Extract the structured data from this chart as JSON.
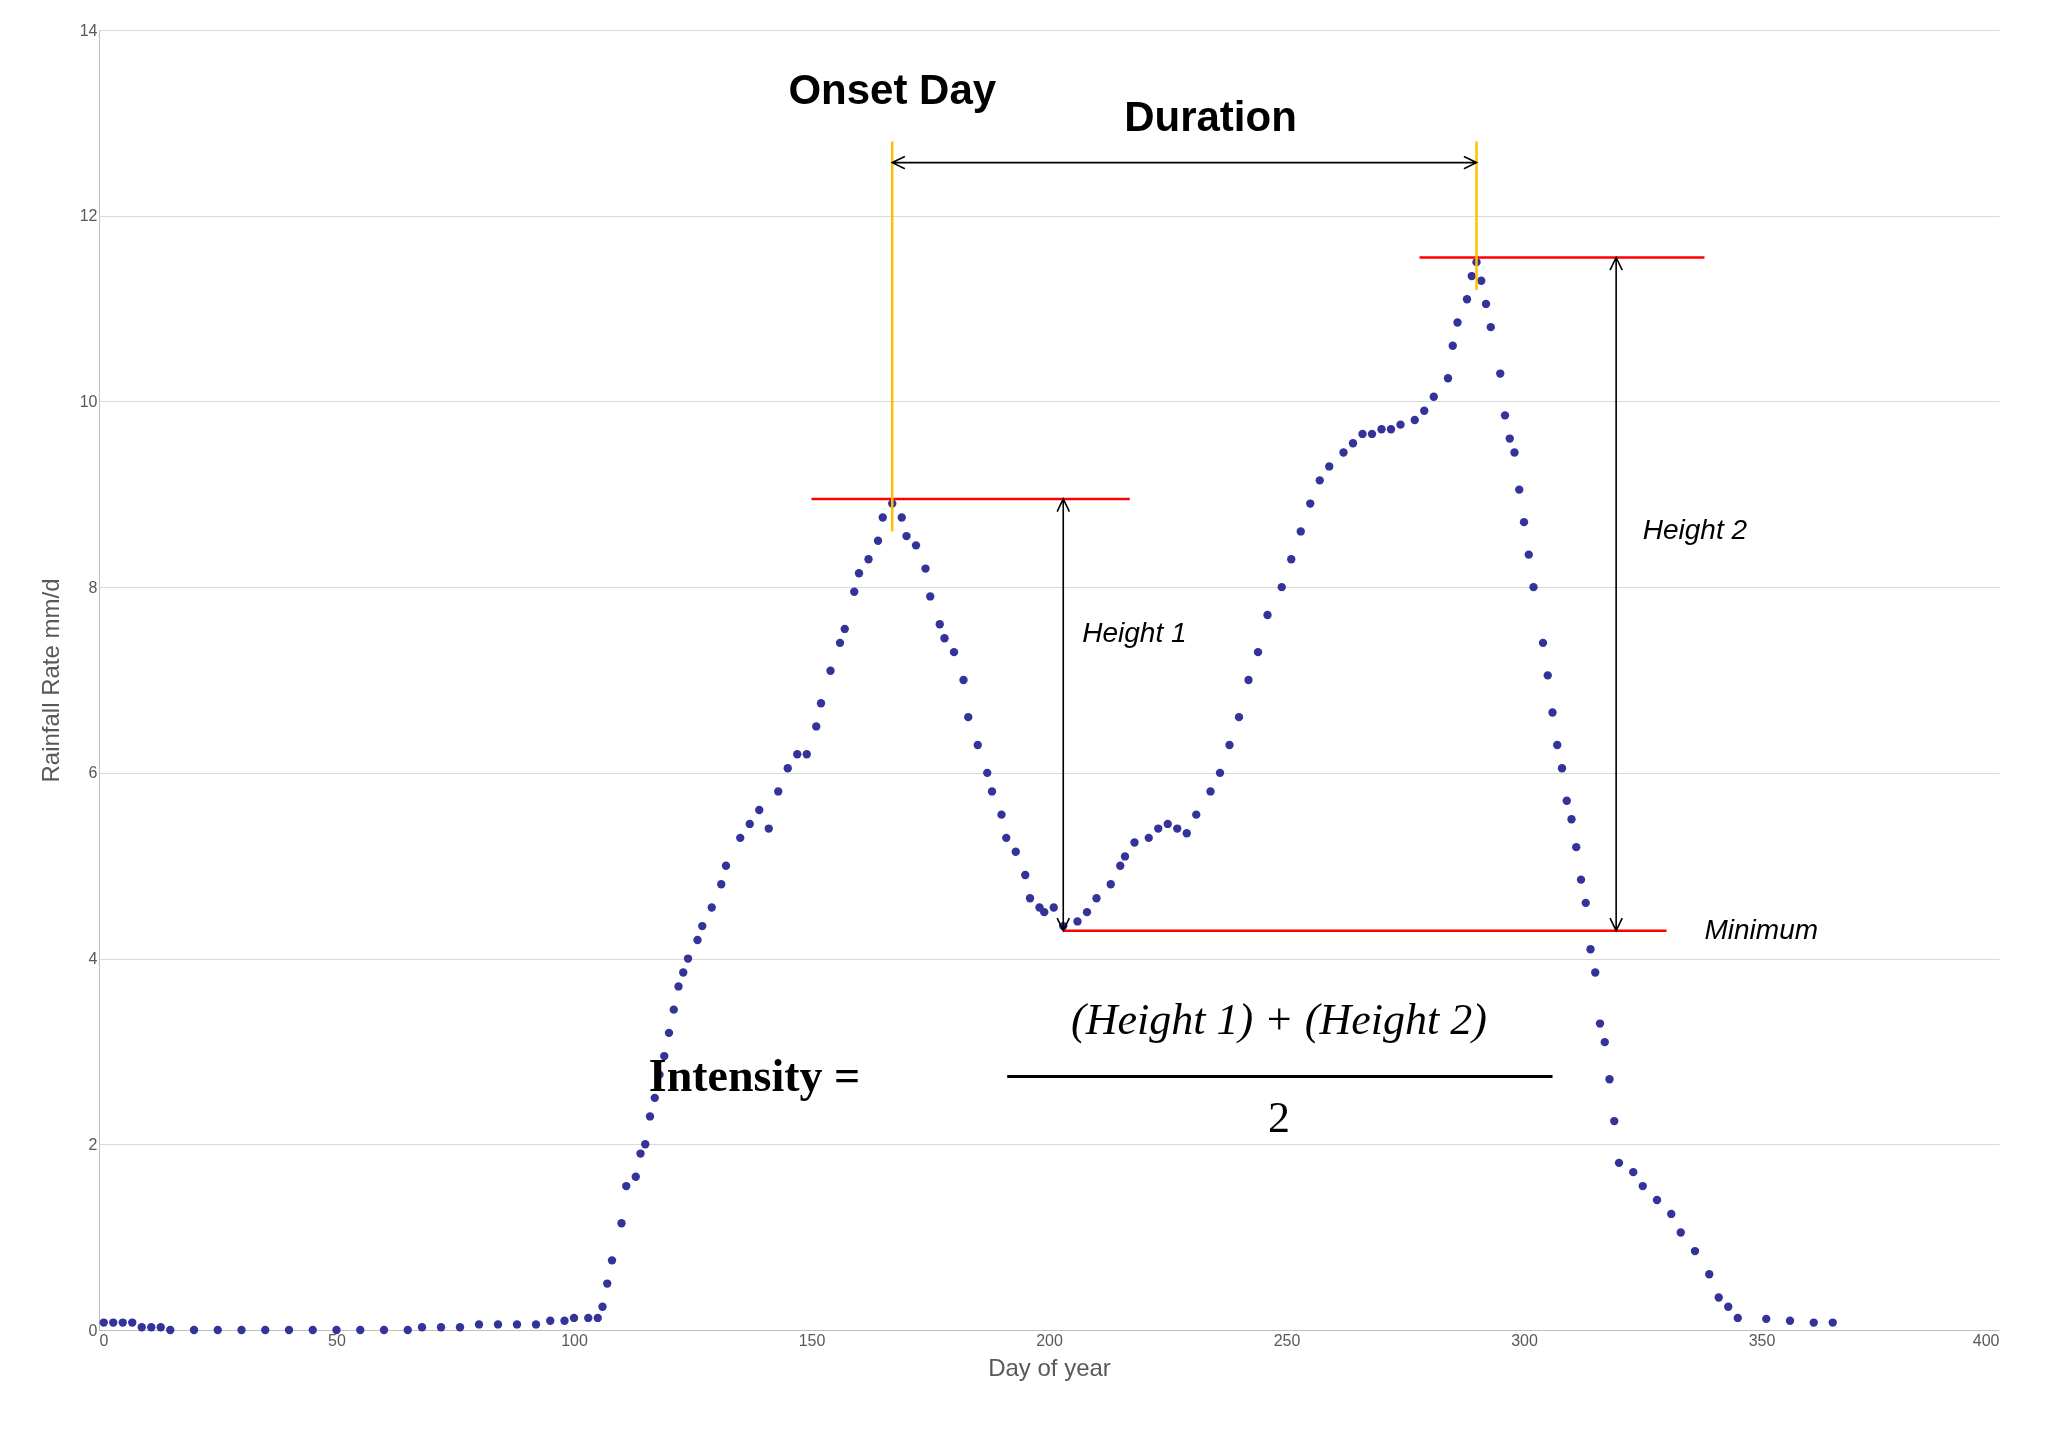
{
  "chart_data": {
    "type": "scatter",
    "xlabel": "Day of year",
    "ylabel": "Rainfall Rate mm/d",
    "xlim": [
      0,
      400
    ],
    "xticks": [
      0,
      50,
      100,
      150,
      200,
      250,
      300,
      350,
      400
    ],
    "ylim": [
      0,
      14
    ],
    "yticks": [
      0,
      2,
      4,
      6,
      8,
      10,
      12,
      14
    ],
    "grid": "y",
    "marker": "circle",
    "series": [
      {
        "color": "#333399",
        "x": [
          1,
          3,
          5,
          7,
          9,
          11,
          13,
          15,
          20,
          25,
          30,
          35,
          40,
          45,
          50,
          55,
          60,
          65,
          68,
          72,
          76,
          80,
          84,
          88,
          92,
          95,
          98,
          100,
          103,
          105,
          106,
          107,
          108,
          110,
          111,
          113,
          114,
          115,
          116,
          117,
          118,
          119,
          120,
          121,
          122,
          123,
          124,
          126,
          127,
          129,
          131,
          132,
          135,
          137,
          139,
          141,
          143,
          145,
          147,
          149,
          151,
          152,
          154,
          156,
          157,
          159,
          160,
          162,
          164,
          165,
          167,
          169,
          170,
          172,
          174,
          175,
          177,
          178,
          180,
          182,
          183,
          185,
          187,
          188,
          190,
          191,
          193,
          195,
          196,
          198,
          199,
          201,
          203,
          206,
          208,
          210,
          213,
          215,
          216,
          218,
          221,
          223,
          225,
          227,
          229,
          231,
          234,
          236,
          238,
          240,
          242,
          244,
          246,
          249,
          251,
          253,
          255,
          257,
          259,
          262,
          264,
          266,
          268,
          270,
          272,
          274,
          277,
          279,
          281,
          284,
          285,
          286,
          288,
          289,
          290,
          291,
          292,
          293,
          295,
          296,
          297,
          298,
          299,
          300,
          301,
          302,
          304,
          305,
          306,
          307,
          308,
          309,
          310,
          311,
          312,
          313,
          314,
          315,
          316,
          317,
          318,
          319,
          320,
          323,
          325,
          328,
          331,
          333,
          336,
          339,
          341,
          343,
          345,
          351,
          356,
          361,
          365
        ],
        "values": [
          0.08,
          0.08,
          0.08,
          0.08,
          0.03,
          0.03,
          0.03,
          0,
          0,
          0,
          0,
          0,
          0,
          0,
          0,
          0,
          0,
          0,
          0.03,
          0.03,
          0.03,
          0.06,
          0.06,
          0.06,
          0.06,
          0.1,
          0.1,
          0.13,
          0.13,
          0.13,
          0.25,
          0.5,
          0.75,
          1.15,
          1.55,
          1.65,
          1.9,
          2.0,
          2.3,
          2.5,
          2.75,
          2.95,
          3.2,
          3.45,
          3.7,
          3.85,
          4.0,
          4.2,
          4.35,
          4.55,
          4.8,
          5.0,
          5.3,
          5.45,
          5.6,
          5.4,
          5.8,
          6.05,
          6.2,
          6.2,
          6.5,
          6.75,
          7.1,
          7.4,
          7.55,
          7.95,
          8.15,
          8.3,
          8.5,
          8.75,
          8.9,
          8.75,
          8.55,
          8.45,
          8.2,
          7.9,
          7.6,
          7.45,
          7.3,
          7.0,
          6.6,
          6.3,
          6.0,
          5.8,
          5.55,
          5.3,
          5.15,
          4.9,
          4.65,
          4.55,
          4.5,
          4.55,
          4.35,
          4.4,
          4.5,
          4.65,
          4.8,
          5.0,
          5.1,
          5.25,
          5.3,
          5.4,
          5.45,
          5.4,
          5.35,
          5.55,
          5.8,
          6.0,
          6.3,
          6.6,
          7.0,
          7.3,
          7.7,
          8.0,
          8.3,
          8.6,
          8.9,
          9.15,
          9.3,
          9.45,
          9.55,
          9.65,
          9.65,
          9.7,
          9.7,
          9.75,
          9.8,
          9.9,
          10.05,
          10.25,
          10.6,
          10.85,
          11.1,
          11.35,
          11.5,
          11.3,
          11.05,
          10.8,
          10.3,
          9.85,
          9.6,
          9.45,
          9.05,
          8.7,
          8.35,
          8.0,
          7.4,
          7.05,
          6.65,
          6.3,
          6.05,
          5.7,
          5.5,
          5.2,
          4.85,
          4.6,
          4.1,
          3.85,
          3.3,
          3.1,
          2.7,
          2.25,
          1.8,
          1.7,
          1.55,
          1.4,
          1.25,
          1.05,
          0.85,
          0.6,
          0.35,
          0.25,
          0.13,
          0.12,
          0.1,
          0.08,
          0.08
        ]
      },
      {
        "type": "line",
        "marker": "none",
        "color": "#ff0000",
        "x": [
          150,
          217
        ],
        "values": [
          8.95,
          8.95
        ]
      },
      {
        "type": "line",
        "marker": "none",
        "color": "#ff0000",
        "x": [
          278,
          338
        ],
        "values": [
          11.55,
          11.55
        ]
      },
      {
        "type": "line",
        "marker": "none",
        "color": "#ff0000",
        "x": [
          203,
          330
        ],
        "values": [
          4.3,
          4.3
        ]
      },
      {
        "type": "line",
        "marker": "none",
        "color": "#ffc000",
        "x": [
          167,
          167
        ],
        "values": [
          8.6,
          12.8
        ]
      },
      {
        "type": "line",
        "marker": "none",
        "color": "#ffc000",
        "x": [
          290,
          290
        ],
        "values": [
          11.2,
          12.8
        ]
      }
    ],
    "annotations": [
      {
        "text": "Onset Day",
        "x": 167,
        "y": 12.8
      },
      "Duration",
      "Height 1",
      "Height 2",
      "Minimum",
      "Intensity =",
      "(Height 1) + (Height 2)",
      "2"
    ]
  }
}
